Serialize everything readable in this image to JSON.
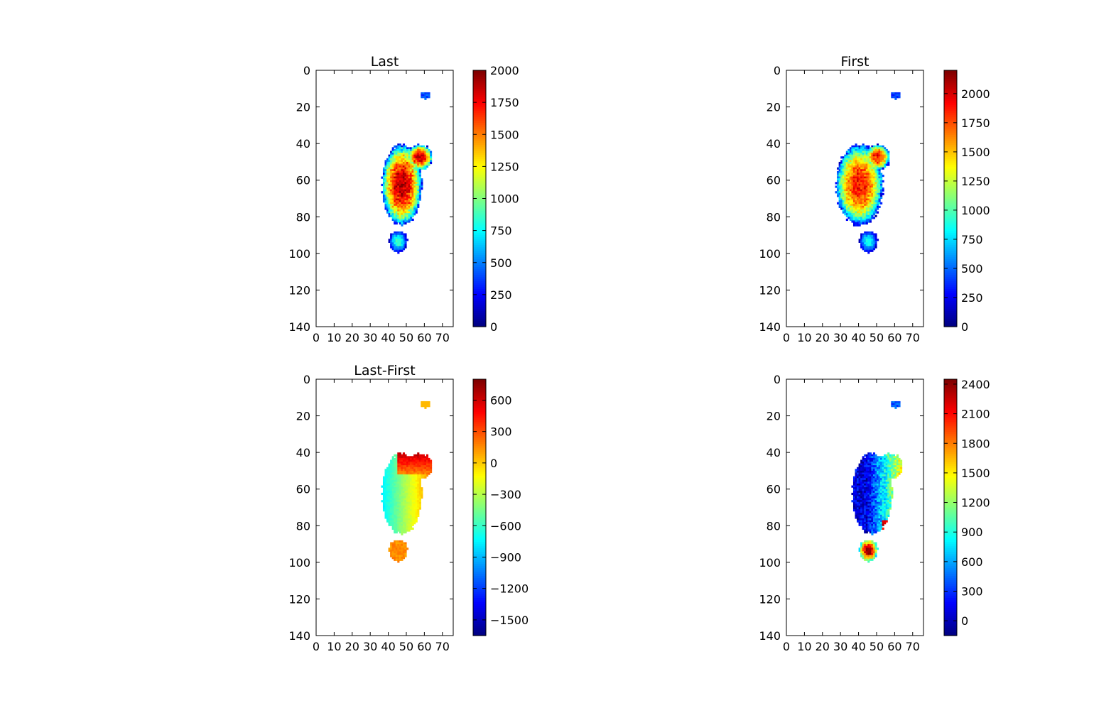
{
  "figure": {
    "background": "#ffffff"
  },
  "chart_data": [
    {
      "id": "last",
      "type": "heatmap",
      "title": "Last",
      "xlabel": "",
      "ylabel": "",
      "xlim": [
        0,
        76
      ],
      "ylim": [
        140,
        0
      ],
      "xticks": [
        0,
        10,
        20,
        30,
        40,
        50,
        60,
        70
      ],
      "yticks": [
        0,
        20,
        40,
        60,
        80,
        100,
        120,
        140
      ],
      "colormap": "jet",
      "colorbar": {
        "vmin": 0,
        "vmax": 2000,
        "ticks": [
          0,
          250,
          500,
          750,
          1000,
          1250,
          1500,
          1750,
          2000
        ]
      },
      "pattern": "last",
      "grid": false
    },
    {
      "id": "first",
      "type": "heatmap",
      "title": "First",
      "xlabel": "",
      "ylabel": "",
      "xlim": [
        0,
        76
      ],
      "ylim": [
        140,
        0
      ],
      "xticks": [
        0,
        10,
        20,
        30,
        40,
        50,
        60,
        70
      ],
      "yticks": [
        0,
        20,
        40,
        60,
        80,
        100,
        120,
        140
      ],
      "colormap": "jet",
      "colorbar": {
        "vmin": 0,
        "vmax": 2200,
        "ticks": [
          0,
          250,
          500,
          750,
          1000,
          1250,
          1500,
          1750,
          2000
        ]
      },
      "pattern": "first",
      "grid": false
    },
    {
      "id": "diff",
      "type": "heatmap",
      "title": "Last-First",
      "xlabel": "",
      "ylabel": "",
      "xlim": [
        0,
        76
      ],
      "ylim": [
        140,
        0
      ],
      "xticks": [
        0,
        10,
        20,
        30,
        40,
        50,
        60,
        70
      ],
      "yticks": [
        0,
        20,
        40,
        60,
        80,
        100,
        120,
        140
      ],
      "colormap": "jet",
      "colorbar": {
        "vmin": -1650,
        "vmax": 800,
        "ticks": [
          -1500,
          -1200,
          -900,
          -600,
          -300,
          0,
          300,
          600
        ]
      },
      "pattern": "diff",
      "grid": false
    },
    {
      "id": "fourth",
      "type": "heatmap",
      "title": "",
      "xlabel": "",
      "ylabel": "",
      "xlim": [
        0,
        76
      ],
      "ylim": [
        140,
        0
      ],
      "xticks": [
        0,
        10,
        20,
        30,
        40,
        50,
        60,
        70
      ],
      "yticks": [
        0,
        20,
        40,
        60,
        80,
        100,
        120,
        140
      ],
      "colormap": "jet",
      "colorbar": {
        "vmin": -150,
        "vmax": 2450,
        "ticks": [
          0,
          300,
          600,
          900,
          1200,
          1500,
          1800,
          2100,
          2400
        ]
      },
      "pattern": "fourth",
      "grid": false
    }
  ]
}
